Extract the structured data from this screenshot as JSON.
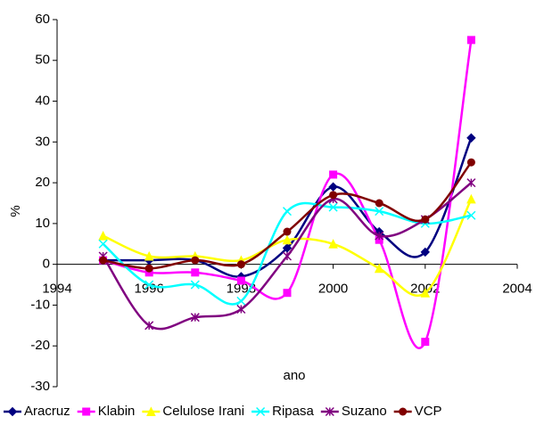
{
  "chart_data": {
    "type": "line",
    "smooth": true,
    "x_label": "ano",
    "y_label": "%",
    "x": [
      1995,
      1996,
      1997,
      1998,
      1999,
      2000,
      2001,
      2002,
      2003
    ],
    "xlim": [
      1994,
      2004
    ],
    "xticks": [
      1994,
      1996,
      1998,
      2000,
      2002,
      2004
    ],
    "ylim": [
      -30,
      60
    ],
    "yticks": [
      -30,
      -20,
      -10,
      0,
      10,
      20,
      30,
      40,
      50,
      60
    ],
    "grid": false,
    "legend": "bottom",
    "series": [
      {
        "name": "Aracruz",
        "color": "#000080",
        "marker": "diamond",
        "values": [
          1,
          1,
          1,
          -3,
          4,
          19,
          8,
          3,
          31
        ]
      },
      {
        "name": "Klabin",
        "color": "#ff00ff",
        "marker": "square",
        "values": [
          1,
          -2,
          -2,
          -4,
          -7,
          22,
          6,
          -19,
          55
        ]
      },
      {
        "name": "Celulose Irani",
        "color": "#ffff00",
        "marker": "triangle",
        "values": [
          7,
          2,
          2,
          1,
          6,
          5,
          -1,
          -7,
          16
        ]
      },
      {
        "name": "Ripasa",
        "color": "#00ffff",
        "marker": "x",
        "values": [
          5,
          -5,
          -5,
          -9,
          13,
          14,
          13,
          10,
          12
        ]
      },
      {
        "name": "Suzano",
        "color": "#800080",
        "marker": "star",
        "values": [
          2,
          -15,
          -13,
          -11,
          2,
          16,
          7,
          11,
          20
        ]
      },
      {
        "name": "VCP",
        "color": "#800000",
        "marker": "circle",
        "values": [
          1,
          -1,
          1,
          0,
          8,
          17,
          15,
          11,
          25
        ]
      }
    ]
  }
}
